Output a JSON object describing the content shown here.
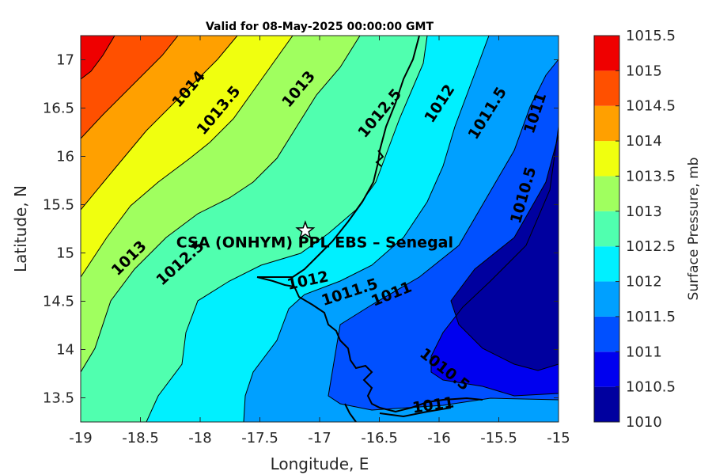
{
  "chart_data": {
    "type": "contour",
    "title": "Valid for 08-May-2025 00:00:00 GMT",
    "xlabel": "Longitude, E",
    "ylabel": "Latitude, N",
    "xlim": [
      -19,
      -15
    ],
    "ylim": [
      13.25,
      17.25
    ],
    "xticks": [
      -19,
      -18.5,
      -18,
      -17.5,
      -17,
      -16.5,
      -16,
      -15.5,
      -15
    ],
    "yticks": [
      13.5,
      14,
      14.5,
      15,
      15.5,
      16,
      16.5,
      17
    ],
    "xtick_labels": [
      "-19",
      "-18.5",
      "-18",
      "-17.5",
      "-17",
      "-16.5",
      "-16",
      "-15.5",
      "-15"
    ],
    "ytick_labels": [
      "13.5",
      "14",
      "14.5",
      "15",
      "15.5",
      "16",
      "16.5",
      "17"
    ],
    "colorbar": {
      "label": "Surface Pressure, mb",
      "levels": [
        1010,
        1010.5,
        1011,
        1011.5,
        1012,
        1012.5,
        1013,
        1013.5,
        1014,
        1014.5,
        1015,
        1015.5
      ],
      "level_labels": [
        "1010",
        "1010.5",
        "1011",
        "1011.5",
        "1012",
        "1012.5",
        "1013",
        "1013.5",
        "1014",
        "1014.5",
        "1015",
        "1015.5"
      ],
      "colors": [
        "#00009f",
        "#0000ef",
        "#0050ff",
        "#00a0ff",
        "#00f0ff",
        "#50ffaf",
        "#a0ff5f",
        "#f0ff0f",
        "#ffa000",
        "#ff5000",
        "#ef0000",
        "#9f0000"
      ]
    },
    "contour_labels": [
      {
        "text": "1014",
        "lon": -18.1,
        "lat": 16.7,
        "angle": -50
      },
      {
        "text": "1013.5",
        "lon": -17.85,
        "lat": 16.48,
        "angle": -50
      },
      {
        "text": "1013",
        "lon": -17.18,
        "lat": 16.7,
        "angle": -50
      },
      {
        "text": "1012.5",
        "lon": -16.5,
        "lat": 16.45,
        "angle": -50
      },
      {
        "text": "1012",
        "lon": -16.0,
        "lat": 16.55,
        "angle": -57
      },
      {
        "text": "1011.5",
        "lon": -15.6,
        "lat": 16.45,
        "angle": -58
      },
      {
        "text": "1011",
        "lon": -15.2,
        "lat": 16.45,
        "angle": -72
      },
      {
        "text": "1010.5",
        "lon": -15.3,
        "lat": 15.6,
        "angle": -74
      },
      {
        "text": "1013",
        "lon": -18.6,
        "lat": 14.95,
        "angle": -45
      },
      {
        "text": "1012.5",
        "lon": -18.17,
        "lat": 14.9,
        "angle": -42
      },
      {
        "text": "1012",
        "lon": -17.1,
        "lat": 14.72,
        "angle": -12
      },
      {
        "text": "1011.5",
        "lon": -16.75,
        "lat": 14.6,
        "angle": -18
      },
      {
        "text": "1011",
        "lon": -16.4,
        "lat": 14.58,
        "angle": -22
      },
      {
        "text": "1010.5",
        "lon": -15.95,
        "lat": 13.8,
        "angle": 38
      },
      {
        "text": "1011",
        "lon": -16.05,
        "lat": 13.43,
        "angle": -8
      }
    ],
    "station": {
      "label": "CSA (ONHYM) PPL EBS  – Senegal",
      "lon": -17.12,
      "lat": 15.23
    }
  }
}
